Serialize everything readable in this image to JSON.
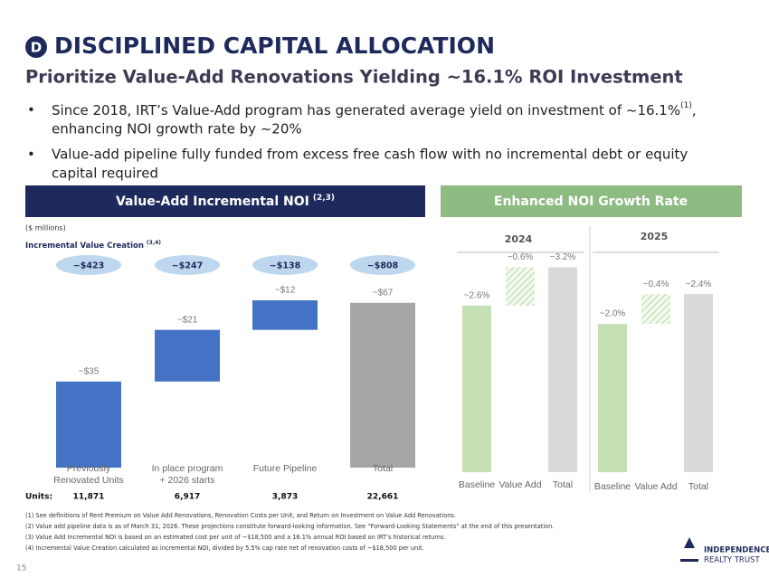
{
  "header": {
    "badge": "D",
    "title": "DISCIPLINED CAPITAL ALLOCATION",
    "subtitle": "Prioritize Value-Add Renovations Yielding ~16.1% ROI Investment"
  },
  "bullets": [
    {
      "lines": [
        "Since 2018, IRT’s Value-Add program has generated average yield on investment of ~16.1%",
        "enhancing NOI growth rate by ~20%"
      ],
      "sup": "(1)",
      "after_sup": ","
    },
    {
      "lines": [
        "Value-add pipeline fully funded from excess free cash flow with no incremental debt or equity",
        "capital required"
      ]
    }
  ],
  "left_panel": {
    "title": "Value-Add Incremental NOI",
    "title_sup": "(2,3)",
    "unit_note": "($ millions)",
    "creation_label": "Incremental Value Creation",
    "creation_sup": "(3,4)",
    "value_creation": [
      "~$423",
      "~$247",
      "~$138",
      "~$808"
    ],
    "units_label": "Units:",
    "units": [
      "11,871",
      "6,917",
      "3,873",
      "22,661"
    ]
  },
  "right_panel": {
    "title": "Enhanced NOI Growth Rate"
  },
  "chart_data": [
    {
      "type": "waterfall",
      "categories": [
        "Previously\nRenovated Units",
        "In place program\n+ 2026 starts",
        "Future Pipeline",
        "Total"
      ],
      "values": [
        35,
        21,
        12,
        67
      ],
      "value_labels": [
        "~$35",
        "~$21",
        "~$12",
        "~$67"
      ],
      "colors": [
        "#4472c4",
        "#4472c4",
        "#4472c4",
        "#a6a6a6"
      ],
      "hatched": [
        false,
        false,
        false,
        false
      ],
      "last_is_total": true
    },
    {
      "type": "waterfall",
      "title": "2024",
      "categories": [
        "Baseline",
        "Value Add",
        "Total"
      ],
      "values": [
        2.6,
        0.6,
        3.2
      ],
      "value_labels": [
        "~2.6%",
        "~0.6%",
        "~3.2%"
      ],
      "colors": [
        "#c5e0b4",
        "#a9d18e",
        "#d9d9d9"
      ],
      "hatched": [
        false,
        true,
        false
      ],
      "last_is_total": true
    },
    {
      "type": "waterfall",
      "title": "2025",
      "categories": [
        "Baseline",
        "Value Add",
        "Total"
      ],
      "values": [
        2.0,
        0.4,
        2.4
      ],
      "value_labels": [
        "~2.0%",
        "~0.4%",
        "~2.4%"
      ],
      "colors": [
        "#c5e0b4",
        "#a9d18e",
        "#d9d9d9"
      ],
      "hatched": [
        false,
        true,
        false
      ],
      "last_is_total": true
    }
  ],
  "footnotes": [
    "(1)  See definitions of Rent Premium on Value Add Renovations, Renovation Costs per Unit, and Return on Investment on Value Add Renovations.",
    "(2)  Value add pipeline data is as of March 31, 2026. These projections constitute forward-looking information. See “Forward-Looking Statements” at the end of this presentation.",
    "(3)  Value Add Incremental NOI is based on an estimated cost per unit of ~$18,500 and a 16.1% annual ROI based on IRT’s historical returns.",
    "(4)  Incremental Value Creation calculated as incremental NOI, divided by 5.5% cap rate net of renovation costs of ~$18,500 per unit."
  ],
  "logo": {
    "line1": "INDEPENDENCE",
    "line2": "REALTY TRUST"
  },
  "page_number": "15"
}
